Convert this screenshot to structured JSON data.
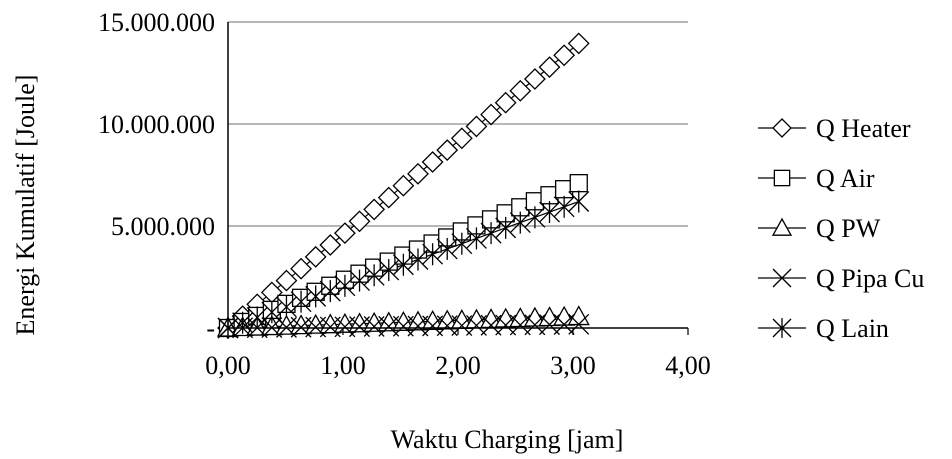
{
  "chart_data": {
    "type": "line",
    "xlabel": "Waktu Charging [jam]",
    "ylabel": "Energi Kumulatif [Joule]",
    "xlim": [
      0,
      4
    ],
    "ylim": [
      0,
      15000000
    ],
    "x_ticks": [
      "0,00",
      "1,00",
      "2,00",
      "3,00",
      "4,00"
    ],
    "y_ticks": [
      "-",
      "5.000.000",
      "10.000.000",
      "15.000.000"
    ],
    "grid": "horizontal",
    "legend_position": "right",
    "series": [
      {
        "name": "Q Heater",
        "marker": "diamond",
        "x_start": 0.0,
        "x_end": 3.05,
        "y_start": 0,
        "y_end": 13950000
      },
      {
        "name": "Q Air",
        "marker": "square",
        "x_start": 0.0,
        "x_end": 3.05,
        "y_start": 0,
        "y_end": 7100000
      },
      {
        "name": "Q PW",
        "marker": "triangle",
        "x_start": 0.0,
        "x_end": 3.05,
        "y_start": 0,
        "y_end": 560000
      },
      {
        "name": "Q Pipa Cu",
        "marker": "x",
        "x_start": 0.0,
        "x_end": 3.05,
        "y_start": 0,
        "y_end": 180000
      },
      {
        "name": "Q Lain",
        "marker": "asterisk",
        "x_start": 0.0,
        "x_end": 3.05,
        "y_start": 0,
        "y_end": 6200000
      }
    ]
  }
}
